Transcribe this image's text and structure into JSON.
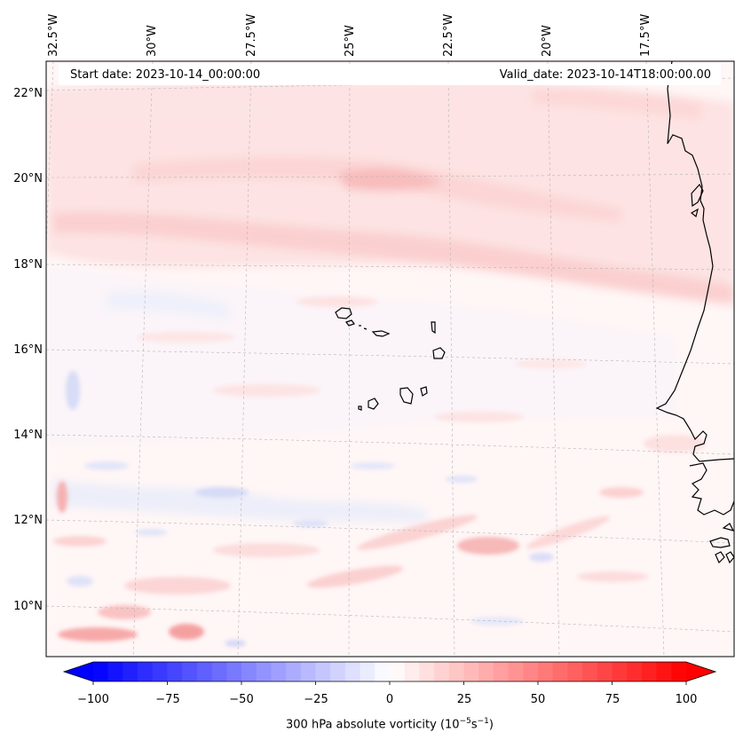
{
  "map": {
    "start_date": "Start date: 2023-10-14_00:00:00",
    "valid_date": "Valid_date: 2023-10-14T18:00:00.00",
    "longitude_labels": [
      "32.5°W",
      "30°W",
      "27.5°W",
      "25°W",
      "22.5°W",
      "20°W",
      "17.5°W"
    ],
    "latitude_labels": [
      "22°N",
      "20°N",
      "18°N",
      "16°N",
      "14°N",
      "12°N",
      "10°N"
    ],
    "field": "300 hPa absolute vorticity"
  },
  "colorbar": {
    "label_text": "300 hPa absolute vorticity (10",
    "label_exp1": "−5",
    "label_mid": "s",
    "label_exp2": "−1",
    "label_end": ")",
    "ticks": [
      "−100",
      "−75",
      "−50",
      "−25",
      "0",
      "25",
      "50",
      "75",
      "100"
    ],
    "min": -100,
    "max": 100,
    "low_color": "#0000ff",
    "high_color": "#ff0000"
  }
}
